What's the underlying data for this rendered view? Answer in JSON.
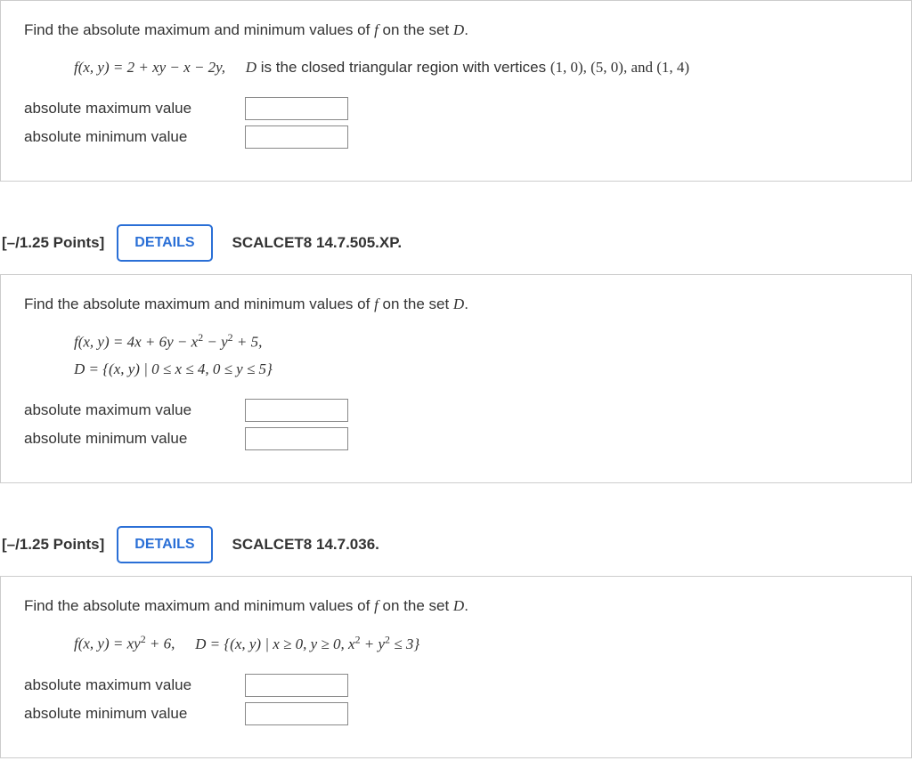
{
  "q1": {
    "prompt_pre": "Find the absolute maximum and minimum values of ",
    "prompt_mid": " on the set ",
    "f_var": "f",
    "D_var": "D",
    "formula": "f(x, y) = 2 + xy − x − 2y,",
    "description_pre": " is the closed triangular region with vertices ",
    "description_verts": "(1, 0), (5, 0), and (1, 4)",
    "max_label": "absolute maximum value",
    "min_label": "absolute minimum value"
  },
  "h2": {
    "points": "[–/1.25 Points]",
    "details": "DETAILS",
    "ref": "SCALCET8 14.7.505.XP."
  },
  "q2": {
    "prompt_pre": "Find the absolute maximum and minimum values of ",
    "prompt_mid": " on the set ",
    "f_var": "f",
    "D_var": "D",
    "formula_line1_a": "f(x, y) = 4x + 6y − x",
    "formula_line1_b": " − y",
    "formula_line1_c": " + 5,",
    "formula_line2_a": "D = {(x, y) | 0 ≤ x ≤ 4, 0 ≤ y ≤ 5}",
    "max_label": "absolute maximum value",
    "min_label": "absolute minimum value"
  },
  "h3": {
    "points": "[–/1.25 Points]",
    "details": "DETAILS",
    "ref": "SCALCET8 14.7.036."
  },
  "q3": {
    "prompt_pre": "Find the absolute maximum and minimum values of ",
    "prompt_mid": " on the set ",
    "f_var": "f",
    "D_var": "D",
    "formula_a": "f(x, y) = xy",
    "formula_b": " + 6,",
    "dset_a": "D = {(x, y) | x ≥ 0, y ≥ 0, x",
    "dset_b": " + y",
    "dset_c": " ≤ 3}",
    "max_label": "absolute maximum value",
    "min_label": "absolute minimum value"
  }
}
